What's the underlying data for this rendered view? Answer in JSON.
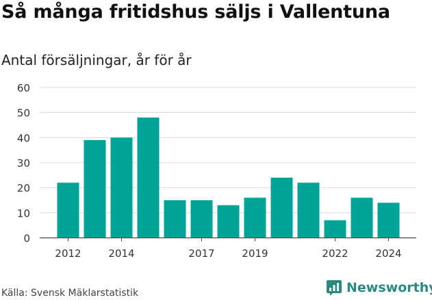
{
  "header": {
    "title": "Så många fritidshus säljs i Vallentuna",
    "subtitle": "Antal försäljningar, år för år"
  },
  "footer": {
    "source": "Källa: Svensk Mäklarstatistik",
    "brand": "Newsworthy",
    "brand_icon": "newsworthy-logo-icon",
    "brand_color": "#2a8a82"
  },
  "chart_data": {
    "type": "bar",
    "categories": [
      "2012",
      "2013",
      "2014",
      "2015",
      "2016",
      "2017",
      "2018",
      "2019",
      "2020",
      "2021",
      "2022",
      "2023",
      "2024"
    ],
    "values": [
      22,
      39,
      40,
      48,
      15,
      15,
      13,
      16,
      24,
      22,
      7,
      16,
      14
    ],
    "x_tick_labels": [
      "2012",
      "2014",
      "2017",
      "2019",
      "2022",
      "2024"
    ],
    "y_ticks": [
      0,
      10,
      20,
      30,
      40,
      50,
      60
    ],
    "ylim": [
      0,
      60
    ],
    "title": "Så många fritidshus säljs i Vallentuna",
    "subtitle": "Antal försäljningar, år för år",
    "xlabel": "",
    "ylabel": "",
    "grid": true,
    "bar_color": "#00a397"
  }
}
